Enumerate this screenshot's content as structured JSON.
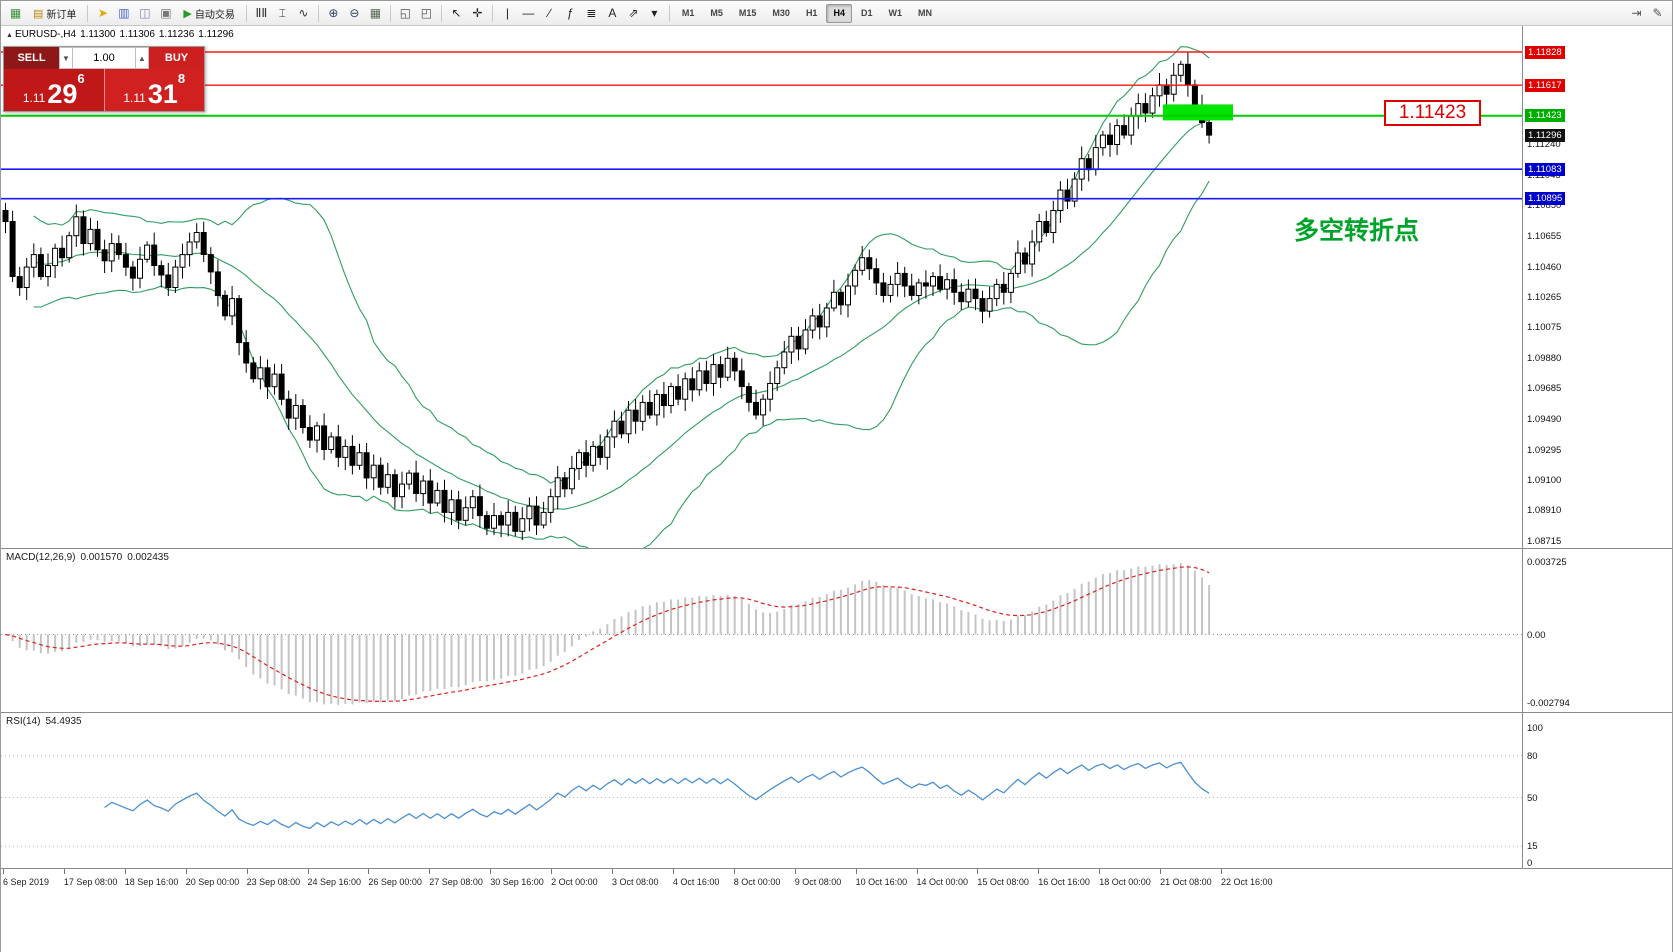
{
  "toolbar": {
    "items": [
      {
        "kind": "icon",
        "name": "new-chart-icon",
        "glyph": "▦",
        "color": "#3a8f3a"
      },
      {
        "kind": "button",
        "name": "new-order-button",
        "label": "新订单",
        "glyph": "▤",
        "glyph_color": "#b8860b"
      },
      {
        "kind": "sep"
      },
      {
        "kind": "icon",
        "name": "mql-community-icon",
        "glyph": "➤",
        "color": "#e0a800"
      },
      {
        "kind": "icon",
        "name": "market-watch-icon",
        "glyph": "▥",
        "color": "#4466cc"
      },
      {
        "kind": "icon",
        "name": "navigator-icon",
        "glyph": "◫",
        "color": "#8888aa"
      },
      {
        "kind": "icon",
        "name": "terminal-icon",
        "glyph": "▣",
        "color": "#777777"
      },
      {
        "kind": "button",
        "name": "autotrading-button",
        "label": "自动交易",
        "glyph": "▶",
        "glyph_color": "#2a9a2a"
      },
      {
        "kind": "sep"
      },
      {
        "kind": "icon",
        "name": "bar-chart-type-icon",
        "glyph": "ⅡⅡ",
        "color": "#333333"
      },
      {
        "kind": "icon",
        "name": "candlestick-type-icon",
        "glyph": "⌶",
        "color": "#333333"
      },
      {
        "kind": "icon",
        "name": "line-chart-type-icon",
        "glyph": "∿",
        "color": "#333333"
      },
      {
        "kind": "sep"
      },
      {
        "kind": "icon",
        "name": "zoom-in-icon",
        "glyph": "⊕",
        "color": "#334466"
      },
      {
        "kind": "icon",
        "name": "zoom-out-icon",
        "glyph": "⊖",
        "color": "#334466"
      },
      {
        "kind": "icon",
        "name": "tile-windows-icon",
        "glyph": "▦",
        "color": "#556655"
      },
      {
        "kind": "sep"
      },
      {
        "kind": "icon",
        "name": "cascade-windows-icon",
        "glyph": "◱",
        "color": "#555555"
      },
      {
        "kind": "icon",
        "name": "arrange-windows-icon",
        "glyph": "◰",
        "color": "#555555"
      },
      {
        "kind": "sep"
      },
      {
        "kind": "icon",
        "name": "cursor-icon",
        "glyph": "↖",
        "color": "#222222"
      },
      {
        "kind": "icon",
        "name": "crosshair-icon",
        "glyph": "✛",
        "color": "#222222"
      },
      {
        "kind": "sep"
      },
      {
        "kind": "icon",
        "name": "vertical-line-icon",
        "glyph": "|",
        "color": "#222222"
      },
      {
        "kind": "icon",
        "name": "horizontal-line-icon",
        "glyph": "—",
        "color": "#222222"
      },
      {
        "kind": "icon",
        "name": "trendline-icon",
        "glyph": "∕",
        "color": "#222222"
      },
      {
        "kind": "icon",
        "name": "fibonacci-icon",
        "glyph": "ƒ",
        "color": "#222222"
      },
      {
        "kind": "icon",
        "name": "equidistant-channel-icon",
        "glyph": "≣",
        "color": "#222222"
      },
      {
        "kind": "icon",
        "name": "text-label-icon",
        "glyph": "A",
        "color": "#222222"
      },
      {
        "kind": "icon",
        "name": "arrow-object-icon",
        "glyph": "⇗",
        "color": "#222222"
      },
      {
        "kind": "icon",
        "name": "objects-dropdown-icon",
        "glyph": "▾",
        "color": "#222222"
      },
      {
        "kind": "sep"
      }
    ],
    "timeframes": [
      "M1",
      "M5",
      "M15",
      "M30",
      "H1",
      "H4",
      "D1",
      "W1",
      "MN"
    ],
    "active_timeframe": "H4",
    "right_icons": [
      {
        "name": "chart-shift-icon",
        "glyph": "⇥"
      },
      {
        "name": "chart-settings-icon",
        "glyph": "✎"
      }
    ]
  },
  "chart_header": {
    "collapse_glyph": "▲",
    "symbol": "EURUSD-,H4",
    "open": "1.11300",
    "high": "1.11306",
    "low": "1.11236",
    "close": "1.11296"
  },
  "trade_panel": {
    "sell_label": "SELL",
    "buy_label": "BUY",
    "volume": "1.00",
    "spin_down_glyph": "▼",
    "spin_up_glyph": "▲",
    "price_prefix": "1.11",
    "sell_big": "29",
    "sell_sup": "6",
    "buy_big": "31",
    "buy_sup": "8"
  },
  "annotations": {
    "price_note": "1.11423",
    "cn_note": "多空转折点"
  },
  "price_lines": [
    {
      "value": "1.11828",
      "price": 1.11828,
      "color": "#ff1a1a",
      "label_bg": "#e00000",
      "width": 1.4
    },
    {
      "value": "1.11617",
      "price": 1.11617,
      "color": "#ff1a1a",
      "label_bg": "#e00000",
      "width": 1.4
    },
    {
      "value": "1.11423",
      "price": 1.11423,
      "color": "#00cc00",
      "label_bg": "#00ae00",
      "width": 2
    },
    {
      "value": "1.11083",
      "price": 1.11083,
      "color": "#1a1aff",
      "label_bg": "#0000cc",
      "width": 1.6
    },
    {
      "value": "1.10895",
      "price": 1.10895,
      "color": "#1a1aff",
      "label_bg": "#0000cc",
      "width": 1.6
    }
  ],
  "bid_label": {
    "value": "1.11296",
    "price": 1.11296,
    "bg": "#111111"
  },
  "highlight_rect": {
    "x": 1162,
    "width": 70,
    "price_top": 1.11495,
    "price_bottom": 1.11393,
    "color": "#00e400"
  },
  "colors": {
    "band": "#2f9e5f",
    "bull": "#ffffff",
    "bear": "#000000",
    "wick": "#000000"
  },
  "macd": {
    "label": "MACD(12,26,9)",
    "value1": "0.001570",
    "value2": "0.002435",
    "max_label": "0.003725",
    "zero_label": "0.00",
    "min_label": "-0.002794",
    "hist_color": "#c4c4c4",
    "signal_color": "#dd2222"
  },
  "rsi": {
    "label": "RSI(14)",
    "value": "54.4935",
    "levels": [
      100,
      80,
      50,
      15,
      0
    ],
    "level_lines": [
      80,
      50,
      15
    ],
    "line_color": "#4a90d2"
  },
  "time_axis": {
    "labels": [
      "6 Sep 2019",
      "17 Sep 08:00",
      "18 Sep 16:00",
      "20 Sep 00:00",
      "23 Sep 08:00",
      "24 Sep 16:00",
      "26 Sep 00:00",
      "27 Sep 08:00",
      "30 Sep 16:00",
      "2 Oct 00:00",
      "3 Oct 08:00",
      "4 Oct 16:00",
      "8 Oct 00:00",
      "9 Oct 08:00",
      "10 Oct 16:00",
      "14 Oct 00:00",
      "15 Oct 08:00",
      "16 Oct 16:00",
      "18 Oct 00:00",
      "21 Oct 08:00",
      "22 Oct 16:00"
    ]
  },
  "chart_data": {
    "type": "candlestick",
    "symbol": "EURUSD",
    "timeframe": "H4",
    "title": "EURUSD-,H4",
    "ohlc_header": {
      "open": 1.113,
      "high": 1.11306,
      "low": 1.11236,
      "close": 1.11296
    },
    "first_open": 1.1082,
    "price_axis_ticks": [
      "1.11240",
      "1.11045",
      "1.10850",
      "1.10655",
      "1.10460",
      "1.10265",
      "1.10075",
      "1.09880",
      "1.09685",
      "1.09490",
      "1.09295",
      "1.09100",
      "1.08910",
      "1.08715"
    ],
    "ylim": [
      1.08674,
      1.11974
    ],
    "indicators": {
      "bollinger": {
        "period": 20,
        "deviation": 2
      },
      "macd": {
        "fast": 12,
        "slow": 26,
        "signal": 9,
        "current": 0.00157,
        "current_signal": 0.002435
      },
      "rsi": {
        "period": 14,
        "current": 54.4935
      }
    },
    "closes": [
      1.1075,
      1.104,
      1.1033,
      1.1046,
      1.1054,
      1.104,
      1.1047,
      1.1058,
      1.1052,
      1.1066,
      1.1078,
      1.1061,
      1.107,
      1.1057,
      1.105,
      1.1061,
      1.1054,
      1.1046,
      1.1039,
      1.1051,
      1.106,
      1.1047,
      1.1041,
      1.1033,
      1.1046,
      1.1054,
      1.1062,
      1.1068,
      1.1054,
      1.1043,
      1.1028,
      1.1015,
      1.1026,
      1.0998,
      1.0985,
      1.0975,
      1.0982,
      1.097,
      1.0978,
      1.0962,
      1.095,
      1.0958,
      1.0944,
      1.0936,
      1.0945,
      1.093,
      1.0938,
      1.0925,
      1.0932,
      1.092,
      1.0928,
      1.0912,
      1.092,
      1.0906,
      1.0914,
      1.09,
      1.0908,
      1.0915,
      1.0902,
      1.091,
      1.0896,
      1.0904,
      1.089,
      1.0898,
      1.0885,
      1.0893,
      1.09,
      1.0888,
      1.088,
      1.0888,
      1.0882,
      1.089,
      1.0878,
      1.0886,
      1.0894,
      1.0882,
      1.089,
      1.09,
      1.0912,
      1.0905,
      1.0918,
      1.0928,
      1.092,
      1.0932,
      1.0925,
      1.0938,
      1.0948,
      1.094,
      1.0955,
      1.0948,
      1.096,
      1.0952,
      1.0965,
      1.0958,
      1.097,
      1.0962,
      1.0975,
      1.0968,
      1.098,
      1.0972,
      1.0984,
      1.0976,
      1.0988,
      1.098,
      1.097,
      1.096,
      1.0952,
      1.0962,
      1.0972,
      1.0982,
      1.0992,
      1.1002,
      1.0994,
      1.1006,
      1.1015,
      1.1008,
      1.102,
      1.103,
      1.1022,
      1.1034,
      1.1044,
      1.1052,
      1.1045,
      1.1036,
      1.1028,
      1.1035,
      1.1042,
      1.1034,
      1.1028,
      1.1036,
      1.1034,
      1.104,
      1.1032,
      1.1038,
      1.103,
      1.1024,
      1.1032,
      1.1026,
      1.1018,
      1.1026,
      1.1035,
      1.103,
      1.1042,
      1.1055,
      1.1048,
      1.1062,
      1.1075,
      1.1068,
      1.1082,
      1.1095,
      1.1088,
      1.1102,
      1.1115,
      1.1108,
      1.1122,
      1.113,
      1.1124,
      1.1136,
      1.113,
      1.1142,
      1.115,
      1.1144,
      1.1155,
      1.1162,
      1.1156,
      1.1168,
      1.1175,
      1.1162,
      1.1148,
      1.1138,
      1.113
    ]
  }
}
